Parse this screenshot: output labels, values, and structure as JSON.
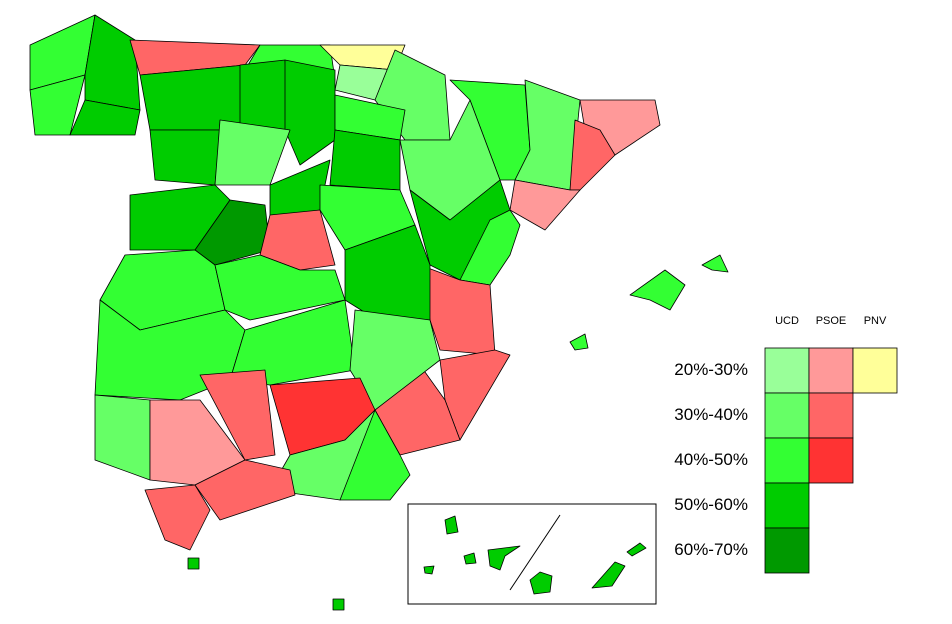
{
  "legend": {
    "columns": [
      {
        "name": "UCD",
        "colors": [
          "#99ff99",
          "#66ff66",
          "#33ff33",
          "#00cc00",
          "#009900"
        ]
      },
      {
        "name": "PSOE",
        "colors": [
          "#ff9999",
          "#ff6666",
          "#ff3333"
        ]
      },
      {
        "name": "PNV",
        "colors": [
          "#ffff99"
        ]
      }
    ],
    "rows": [
      "20%-30%",
      "30%-40%",
      "40%-50%",
      "50%-60%",
      "60%-70%"
    ]
  }
}
